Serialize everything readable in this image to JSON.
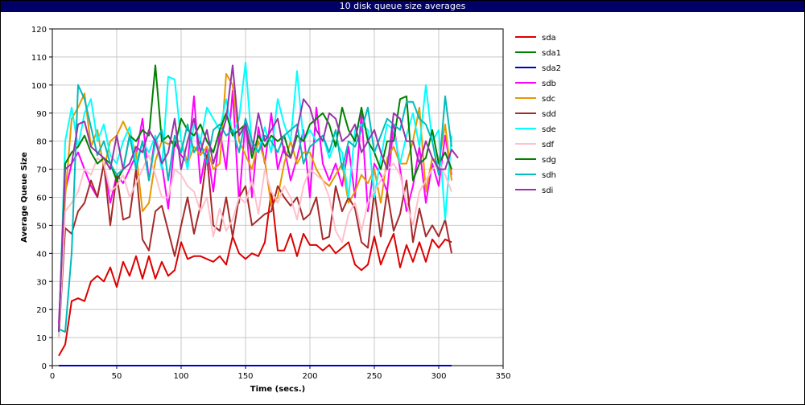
{
  "window": {
    "title": "10 disk queue size averages"
  },
  "chart_data": {
    "type": "line",
    "title": "10 disk queue size averages",
    "xlabel": "Time (secs.)",
    "ylabel": "Average Queue Size",
    "xlim": [
      0,
      350
    ],
    "ylim": [
      0,
      120
    ],
    "xticks": [
      0,
      50,
      100,
      150,
      200,
      250,
      300,
      350
    ],
    "yticks": [
      0,
      10,
      20,
      30,
      40,
      50,
      60,
      70,
      80,
      90,
      100,
      110,
      120
    ],
    "grid": true,
    "legend_position": "right",
    "x": [
      5,
      10,
      15,
      20,
      25,
      30,
      35,
      40,
      45,
      50,
      55,
      60,
      65,
      70,
      75,
      80,
      85,
      90,
      95,
      100,
      105,
      110,
      115,
      120,
      125,
      130,
      135,
      140,
      145,
      150,
      155,
      160,
      165,
      170,
      175,
      180,
      185,
      190,
      195,
      200,
      205,
      210,
      215,
      220,
      225,
      230,
      235,
      240,
      245,
      250,
      255,
      260,
      265,
      270,
      275,
      280,
      285,
      290,
      295,
      300,
      305,
      310,
      315
    ],
    "series": [
      {
        "name": "sda",
        "color": "#dd0000",
        "values": [
          3.5,
          7.5,
          23,
          24,
          23,
          30,
          32,
          30,
          35,
          28,
          37,
          32,
          39,
          31,
          39,
          31,
          37,
          32,
          34,
          44,
          38,
          39,
          39,
          38,
          37,
          39,
          36,
          46,
          40,
          38,
          40,
          39,
          44,
          62,
          41,
          41,
          47,
          39,
          47,
          43,
          43,
          41,
          43,
          40,
          42,
          44,
          36,
          34,
          36,
          46,
          36,
          42,
          47,
          35,
          43,
          37,
          44,
          37,
          45,
          42,
          45,
          44,
          null
        ]
      },
      {
        "name": "sda1",
        "color": "#008000",
        "values": [
          0,
          0,
          0,
          0,
          0,
          0,
          0,
          0,
          0,
          0,
          0,
          0,
          0,
          0,
          0,
          0,
          0,
          0,
          0,
          0,
          0,
          0,
          0,
          0,
          0,
          0,
          0,
          0,
          0,
          0,
          0,
          0,
          0,
          0,
          0,
          0,
          0,
          0,
          0,
          0,
          0,
          0,
          0,
          0,
          0,
          0,
          0,
          0,
          0,
          0,
          0,
          0,
          0,
          0,
          0,
          0,
          0,
          0,
          0,
          0,
          0,
          0,
          null
        ]
      },
      {
        "name": "sda2",
        "color": "#0000cc",
        "values": [
          0,
          0,
          0,
          0,
          0,
          0,
          0,
          0,
          0,
          0,
          0,
          0,
          0,
          0,
          0,
          0,
          0,
          0,
          0,
          0,
          0,
          0,
          0,
          0,
          0,
          0,
          0,
          0,
          0,
          0,
          0,
          0,
          0,
          0,
          0,
          0,
          0,
          0,
          0,
          0,
          0,
          0,
          0,
          0,
          0,
          0,
          0,
          0,
          0,
          0,
          0,
          0,
          0,
          0,
          0,
          0,
          0,
          0,
          0,
          0,
          0,
          0,
          null
        ]
      },
      {
        "name": "sdb",
        "color": "#ff00ff",
        "values": [
          15,
          62,
          72,
          76,
          70,
          64,
          60,
          72,
          58,
          68,
          65,
          70,
          75,
          88,
          66,
          82,
          72,
          56,
          80,
          75,
          72,
          96,
          65,
          78,
          62,
          84,
          70,
          98,
          58,
          88,
          60,
          85,
          72,
          90,
          70,
          78,
          66,
          74,
          84,
          60,
          92,
          72,
          66,
          72,
          64,
          78,
          60,
          90,
          55,
          72,
          68,
          62,
          86,
          70,
          55,
          64,
          78,
          58,
          72,
          64,
          82,
          68,
          null
        ]
      },
      {
        "name": "sdc",
        "color": "#e69900",
        "values": [
          12,
          60,
          88,
          92,
          97,
          78,
          84,
          70,
          80,
          82,
          87,
          82,
          76,
          55,
          58,
          73,
          80,
          79,
          80,
          80,
          72,
          78,
          75,
          78,
          70,
          72,
          104,
          100,
          80,
          75,
          70,
          80,
          73,
          57,
          60,
          72,
          80,
          72,
          76,
          76,
          70,
          66,
          64,
          68,
          72,
          58,
          62,
          68,
          65,
          70,
          58,
          74,
          78,
          72,
          72,
          80,
          92,
          62,
          74,
          72,
          86,
          66,
          null
        ]
      },
      {
        "name": "sdd",
        "color": "#a52a2a",
        "values": [
          10,
          49,
          47,
          55,
          58,
          66,
          60,
          72,
          50,
          68,
          52,
          53,
          70,
          45,
          41,
          55,
          57,
          48,
          39,
          50,
          60,
          47,
          57,
          75,
          50,
          48,
          60,
          46,
          60,
          64,
          50,
          52,
          54,
          55,
          64,
          60,
          57,
          60,
          52,
          54,
          60,
          45,
          46,
          64,
          55,
          60,
          56,
          44,
          42,
          62,
          46,
          62,
          48,
          54,
          66,
          44,
          56,
          46,
          50,
          46,
          52,
          40,
          null
        ]
      },
      {
        "name": "sde",
        "color": "#00ffff",
        "values": [
          10,
          80,
          92,
          78,
          90,
          95,
          80,
          86,
          75,
          72,
          80,
          85,
          72,
          80,
          76,
          82,
          70,
          103,
          102,
          80,
          70,
          86,
          80,
          92,
          88,
          84,
          95,
          82,
          88,
          108,
          78,
          76,
          85,
          76,
          95,
          86,
          80,
          105,
          80,
          84,
          80,
          82,
          74,
          80,
          76,
          60,
          84,
          86,
          84,
          60,
          74,
          86,
          84,
          72,
          82,
          90,
          78,
          100,
          80,
          84,
          52,
          82,
          null
        ]
      },
      {
        "name": "sdf",
        "color": "#ffc0cb",
        "values": [
          10,
          55,
          58,
          62,
          70,
          68,
          74,
          72,
          62,
          64,
          68,
          60,
          65,
          70,
          75,
          68,
          60,
          60,
          70,
          68,
          64,
          62,
          55,
          60,
          46,
          56,
          48,
          52,
          60,
          58,
          66,
          54,
          70,
          62,
          58,
          64,
          60,
          52,
          64,
          70,
          68,
          66,
          60,
          48,
          44,
          54,
          58,
          48,
          58,
          62,
          66,
          70,
          72,
          68,
          58,
          50,
          62,
          66,
          70,
          72,
          68,
          62,
          null
        ]
      },
      {
        "name": "sdg",
        "color": "#008000",
        "values": [
          12,
          72,
          76,
          78,
          82,
          76,
          72,
          74,
          72,
          66,
          70,
          82,
          80,
          84,
          82,
          107,
          80,
          82,
          78,
          88,
          84,
          82,
          86,
          80,
          76,
          84,
          90,
          82,
          84,
          86,
          74,
          82,
          78,
          82,
          80,
          82,
          74,
          82,
          80,
          86,
          88,
          90,
          86,
          78,
          92,
          84,
          80,
          92,
          80,
          76,
          70,
          80,
          80,
          95,
          96,
          66,
          72,
          74,
          84,
          72,
          76,
          70,
          null
        ]
      },
      {
        "name": "sdh",
        "color": "#00bbbb",
        "values": [
          13,
          12,
          40,
          100,
          95,
          85,
          75,
          80,
          72,
          68,
          70,
          82,
          70,
          80,
          66,
          80,
          84,
          66,
          82,
          76,
          86,
          76,
          80,
          72,
          84,
          86,
          82,
          84,
          76,
          88,
          80,
          76,
          82,
          80,
          76,
          82,
          84,
          86,
          72,
          78,
          80,
          82,
          76,
          84,
          70,
          80,
          78,
          84,
          92,
          76,
          82,
          88,
          86,
          84,
          94,
          94,
          88,
          86,
          80,
          68,
          96,
          78,
          null
        ]
      },
      {
        "name": "sdi",
        "color": "#9933aa",
        "values": [
          12,
          70,
          72,
          86,
          87,
          78,
          76,
          74,
          70,
          82,
          70,
          72,
          78,
          76,
          84,
          80,
          72,
          76,
          88,
          70,
          80,
          88,
          76,
          84,
          72,
          80,
          88,
          107,
          82,
          86,
          76,
          90,
          80,
          84,
          88,
          76,
          74,
          84,
          95,
          92,
          84,
          80,
          90,
          88,
          80,
          82,
          86,
          76,
          80,
          84,
          76,
          70,
          90,
          88,
          80,
          80,
          72,
          80,
          74,
          70,
          70,
          77,
          74
        ]
      }
    ]
  }
}
